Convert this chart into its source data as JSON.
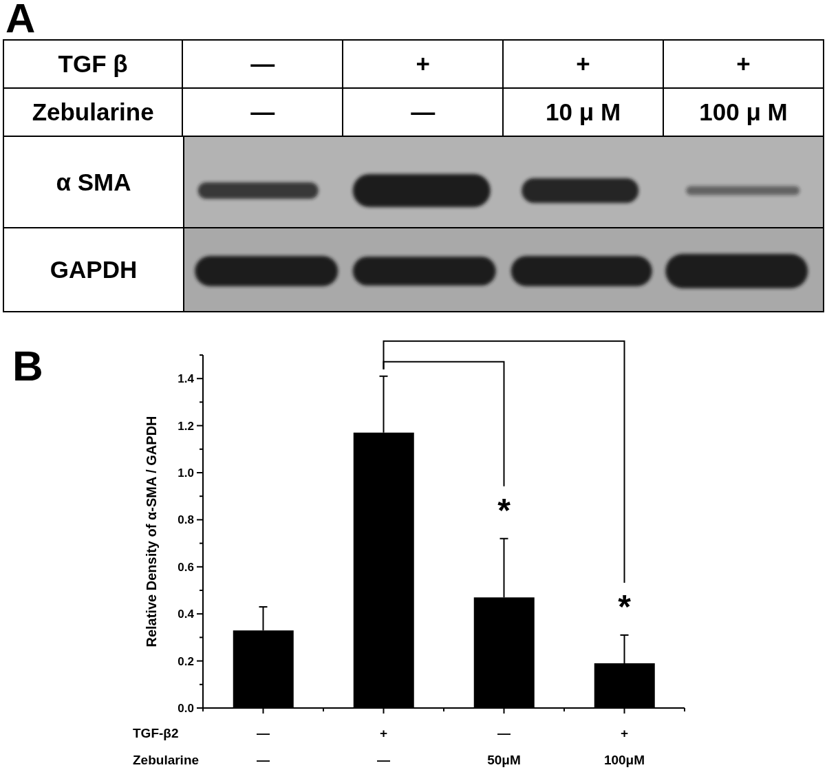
{
  "chart_data": [
    {
      "type": "other",
      "title": "A",
      "categories": [
        null,
        null,
        null,
        null
      ],
      "y_categories": [
        "TGF β",
        "Zebularine",
        "α SMA",
        "GAPDH"
      ],
      "annotations": [
        "—",
        "+",
        "+",
        "+",
        "—",
        "—",
        "10 μ M",
        "100 μ M"
      ]
    },
    {
      "type": "bar",
      "title": "B",
      "ylabel": "Relative Density of α-SMA / GAPDH",
      "categories": [
        "—\n—",
        "+\n—",
        "—\n50μM",
        "+\n100μM"
      ],
      "values": [
        0.33,
        1.17,
        0.47,
        0.19
      ],
      "errors": [
        0.1,
        0.24,
        0.25,
        0.12
      ],
      "color": "#000000",
      "ylim": [
        0,
        1.5
      ],
      "yticks": [
        {
          "value": 0,
          "label": "0.0"
        },
        {
          "value": 0.1,
          "label": null
        },
        0.2,
        {
          "value": 0.3,
          "label": null
        },
        0.4,
        {
          "value": 0.5,
          "label": null
        },
        0.6,
        {
          "value": 0.7,
          "label": null
        },
        0.8,
        {
          "value": 0.9,
          "label": null
        },
        {
          "value": 1,
          "label": "1.0"
        },
        {
          "value": 1.1,
          "label": null
        },
        1.2,
        {
          "value": 1.3,
          "label": null
        },
        1.4,
        {
          "value": 1.5,
          "label": null
        }
      ],
      "annotations": [
        "TGF-β2",
        "Zebularine",
        "*",
        "*"
      ]
    }
  ]
}
